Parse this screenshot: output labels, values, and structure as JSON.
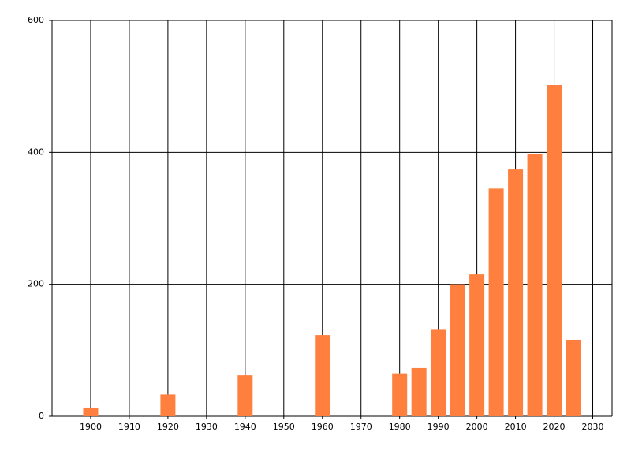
{
  "chart_data": {
    "type": "bar",
    "x": [
      1900,
      1920,
      1940,
      1960,
      1980,
      1985,
      1990,
      1995,
      2000,
      2005,
      2010,
      2015,
      2020,
      2025
    ],
    "values": [
      12,
      33,
      62,
      123,
      65,
      73,
      131,
      200,
      215,
      345,
      374,
      397,
      502,
      116
    ],
    "color": "#ff7f3f",
    "xlim": [
      1890,
      2035
    ],
    "xticks": [
      1900,
      1910,
      1920,
      1930,
      1940,
      1950,
      1960,
      1970,
      1980,
      1990,
      2000,
      2010,
      2020,
      2030
    ],
    "ylim": [
      0,
      600
    ],
    "yticks": [
      0,
      200,
      400,
      600
    ],
    "grid": true
  }
}
